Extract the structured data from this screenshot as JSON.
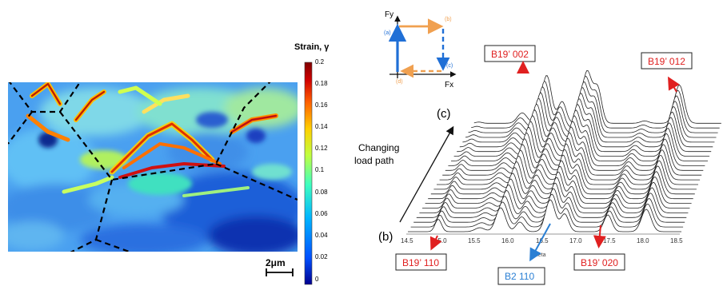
{
  "strain_map": {
    "colorbar_title": "Strain, γ",
    "colorbar_ticks": [
      "0.2",
      "0.18",
      "0.16",
      "0.14",
      "0.12",
      "0.1",
      "0.08",
      "0.06",
      "0.04",
      "0.02",
      "0"
    ],
    "scale_bar_label": "2μm",
    "colormap": [
      "#00008f",
      "#0050ff",
      "#00b5ff",
      "#3fffbf",
      "#bfff40",
      "#ffd000",
      "#ff6000",
      "#d00000",
      "#800000"
    ]
  },
  "load_path_schematic": {
    "axis_y": "Fy",
    "axis_x": "Fx",
    "points": {
      "a": "(a)",
      "b": "(b)",
      "c": "(c)",
      "d": "(d)"
    },
    "colors": {
      "blue": "#1f6fd6",
      "orange": "#f0a050"
    }
  },
  "waterfall": {
    "arrow_label_line1": "Changing",
    "arrow_label_line2": "load path",
    "start_label": "(b)",
    "end_label": "(c)",
    "x_ticks": [
      "14.5",
      "15.0",
      "15.5",
      "16.0",
      "16.5",
      "17.0",
      "17.5",
      "18.0",
      "18.5"
    ],
    "x_axis_label": "2theta",
    "peak_labels": {
      "b19_002": "B19’ 002",
      "b19_012": "B19’ 012",
      "b19_110": "B19’ 110",
      "b2_110": "B2 110",
      "b19_020": "B19’ 020"
    },
    "label_colors": {
      "red": "#e02020",
      "blue": "#2a7fd4"
    }
  }
}
